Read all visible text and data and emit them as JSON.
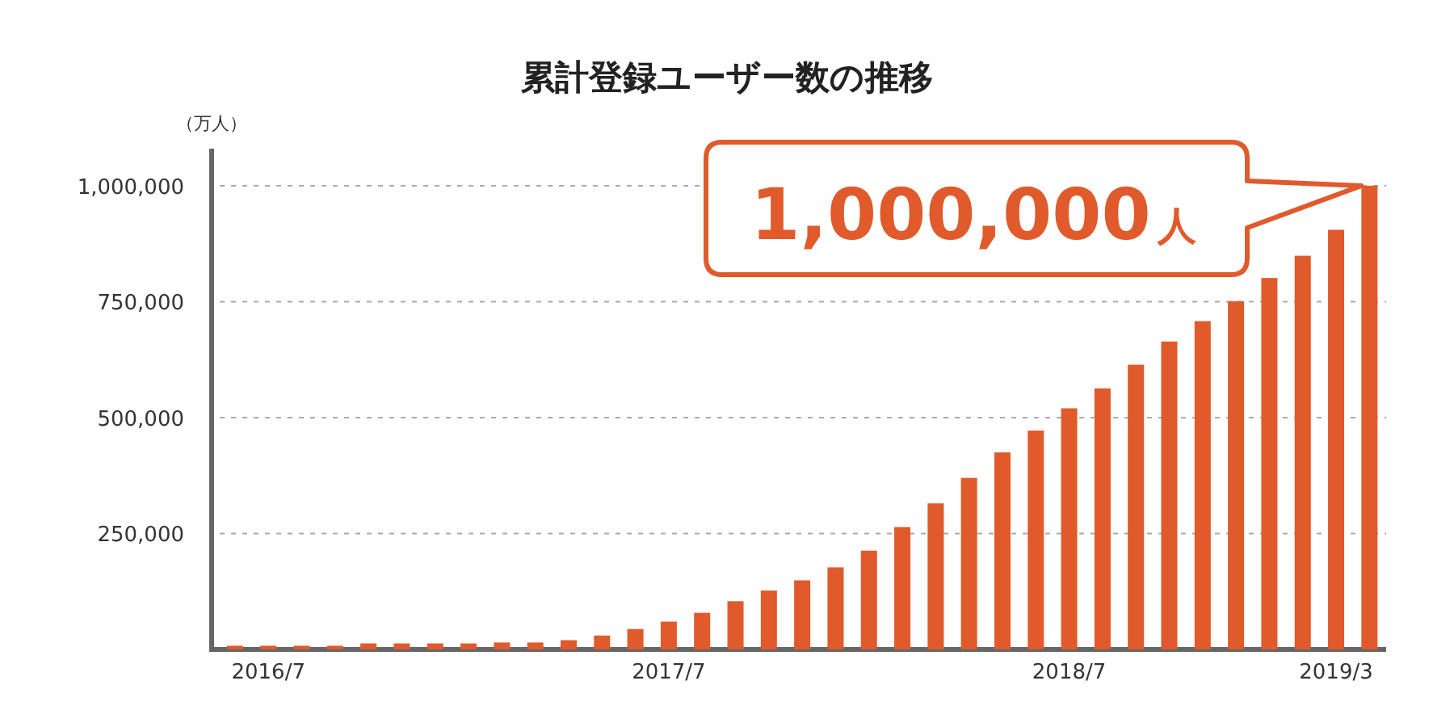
{
  "chart_data": {
    "type": "bar",
    "title": "累計登録ユーザー数の推移",
    "ylabel": "（万人）",
    "categories": [
      null,
      "2016/7",
      null,
      null,
      null,
      null,
      null,
      null,
      null,
      null,
      null,
      null,
      null,
      "2017/7",
      null,
      null,
      null,
      null,
      null,
      null,
      null,
      null,
      null,
      null,
      null,
      "2018/7",
      null,
      null,
      null,
      null,
      null,
      null,
      null,
      "2019/3",
      null
    ],
    "values": [
      8000,
      8000,
      8000,
      8000,
      13000,
      13000,
      13000,
      13000,
      15000,
      15000,
      20000,
      30000,
      44000,
      60000,
      79000,
      104000,
      127000,
      149000,
      177000,
      213000,
      264000,
      315000,
      370000,
      425000,
      472000,
      520000,
      563000,
      614000,
      664000,
      708000,
      751000,
      801000,
      849000,
      905000,
      1000000
    ],
    "color": "#e05a2b",
    "ylim": [
      0,
      1080000
    ],
    "yticks": [
      {
        "value": 250000,
        "label": "250,000"
      },
      {
        "value": 500000,
        "label": "500,000"
      },
      {
        "value": 750000,
        "label": "750,000"
      },
      {
        "value": 1000000,
        "label": "1,000,000"
      }
    ],
    "grid": "y",
    "annotations": [
      "1,000,000人"
    ]
  }
}
